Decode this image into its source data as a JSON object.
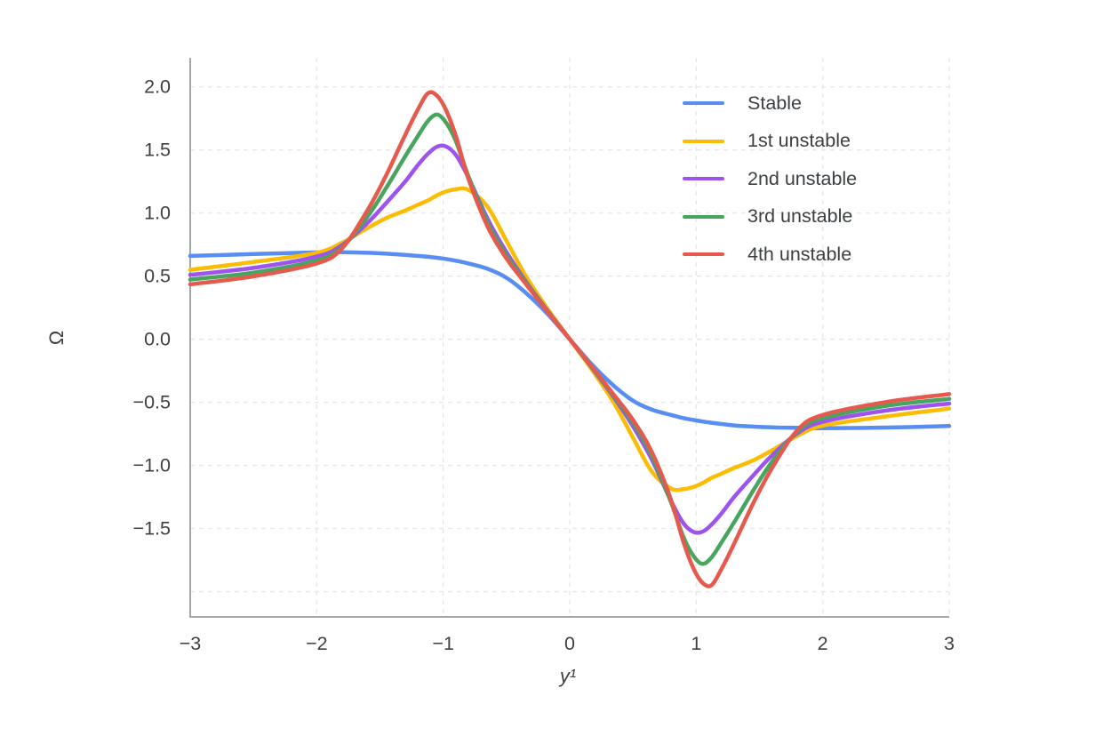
{
  "page": {
    "background": "#ffffff"
  },
  "chart_data": {
    "type": "line",
    "title": "",
    "xlabel": "y¹",
    "ylabel": "Ω",
    "xlim": [
      -3,
      3
    ],
    "ylim": [
      -2.2,
      2.23
    ],
    "grid": "dashed light-gray, y every 0.5, x every 1",
    "legend_position": "top-right",
    "axis_color": "#a3a7ab",
    "grid_color": "#e8e8e8",
    "text_color": "#3c4043",
    "x_ticks": [
      {
        "v": -3,
        "label": "−3"
      },
      {
        "v": -2,
        "label": "−2"
      },
      {
        "v": -1,
        "label": "−1"
      },
      {
        "v": 0,
        "label": "0"
      },
      {
        "v": 1,
        "label": "1"
      },
      {
        "v": 2,
        "label": "2"
      },
      {
        "v": 3,
        "label": "3"
      }
    ],
    "y_ticks": [
      {
        "v": 2.0,
        "label": "2.0"
      },
      {
        "v": 1.5,
        "label": "1.5"
      },
      {
        "v": 1.0,
        "label": "1.0"
      },
      {
        "v": 0.5,
        "label": "0.5"
      },
      {
        "v": 0.0,
        "label": "0.0"
      },
      {
        "v": -0.5,
        "label": "−0.5"
      },
      {
        "v": -1.0,
        "label": "−1.0"
      },
      {
        "v": -1.5,
        "label": "−1.5"
      }
    ],
    "x_gridlines": [
      -2,
      -1,
      0,
      1,
      2,
      3
    ],
    "y_gridlines": [
      2,
      1.5,
      1,
      0.5,
      0,
      -0.5,
      -1,
      -1.5,
      -2
    ],
    "x_samples": [
      -3,
      -2.5,
      -2,
      -1.8,
      -1.6,
      -1.45,
      -1.3,
      -1.2,
      -1.12,
      -1.05,
      -0.98,
      -0.9,
      -0.8,
      -0.65,
      -0.5,
      -0.35,
      -0.18,
      0,
      0.18,
      0.35,
      0.5,
      0.65,
      0.8,
      0.9,
      0.98,
      1.05,
      1.12,
      1.2,
      1.3,
      1.45,
      1.6,
      1.8,
      2,
      2.5,
      3
    ],
    "series": [
      {
        "name": "Stable",
        "slug": "stable",
        "color": "#588df2",
        "y": [
          0.66,
          0.675,
          0.688,
          0.69,
          0.685,
          0.678,
          0.668,
          0.66,
          0.653,
          0.645,
          0.636,
          0.622,
          0.6,
          0.558,
          0.487,
          0.37,
          0.205,
          0,
          -0.205,
          -0.37,
          -0.487,
          -0.558,
          -0.6,
          -0.625,
          -0.64,
          -0.652,
          -0.662,
          -0.672,
          -0.683,
          -0.692,
          -0.698,
          -0.702,
          -0.705,
          -0.7,
          -0.688
        ]
      },
      {
        "name": "1st unstable",
        "slug": "1st-unstable",
        "color": "#fbbc04",
        "y": [
          0.55,
          0.612,
          0.685,
          0.765,
          0.88,
          0.96,
          1.02,
          1.065,
          1.1,
          1.14,
          1.17,
          1.188,
          1.183,
          1.05,
          0.78,
          0.505,
          0.248,
          0,
          -0.248,
          -0.505,
          -0.78,
          -1.05,
          -1.183,
          -1.188,
          -1.17,
          -1.14,
          -1.1,
          -1.065,
          -1.02,
          -0.96,
          -0.88,
          -0.765,
          -0.685,
          -0.612,
          -0.55
        ]
      },
      {
        "name": "2nd unstable",
        "slug": "2nd-unstable",
        "color": "#9e52ee",
        "y": [
          0.51,
          0.565,
          0.655,
          0.745,
          0.92,
          1.08,
          1.25,
          1.38,
          1.47,
          1.525,
          1.528,
          1.46,
          1.28,
          0.955,
          0.69,
          0.462,
          0.232,
          0,
          -0.232,
          -0.462,
          -0.69,
          -0.955,
          -1.28,
          -1.46,
          -1.528,
          -1.525,
          -1.47,
          -1.38,
          -1.25,
          -1.08,
          -0.92,
          -0.745,
          -0.655,
          -0.565,
          -0.51
        ]
      },
      {
        "name": "3rd unstable",
        "slug": "3rd-unstable",
        "color": "#47a55f",
        "y": [
          0.473,
          0.528,
          0.625,
          0.73,
          0.97,
          1.2,
          1.45,
          1.61,
          1.73,
          1.78,
          1.72,
          1.57,
          1.29,
          0.925,
          0.662,
          0.452,
          0.228,
          0,
          -0.228,
          -0.452,
          -0.662,
          -0.925,
          -1.29,
          -1.57,
          -1.72,
          -1.78,
          -1.73,
          -1.61,
          -1.45,
          -1.2,
          -0.97,
          -0.73,
          -0.625,
          -0.528,
          -0.473
        ]
      },
      {
        "name": "4th unstable",
        "slug": "4th-unstable",
        "color": "#e6594d",
        "y": [
          0.435,
          0.498,
          0.6,
          0.72,
          1.02,
          1.3,
          1.62,
          1.82,
          1.95,
          1.93,
          1.82,
          1.61,
          1.27,
          0.895,
          0.64,
          0.442,
          0.224,
          0,
          -0.224,
          -0.442,
          -0.64,
          -0.895,
          -1.27,
          -1.61,
          -1.82,
          -1.93,
          -1.95,
          -1.82,
          -1.62,
          -1.3,
          -1.02,
          -0.72,
          -0.6,
          -0.498,
          -0.435
        ]
      }
    ]
  }
}
